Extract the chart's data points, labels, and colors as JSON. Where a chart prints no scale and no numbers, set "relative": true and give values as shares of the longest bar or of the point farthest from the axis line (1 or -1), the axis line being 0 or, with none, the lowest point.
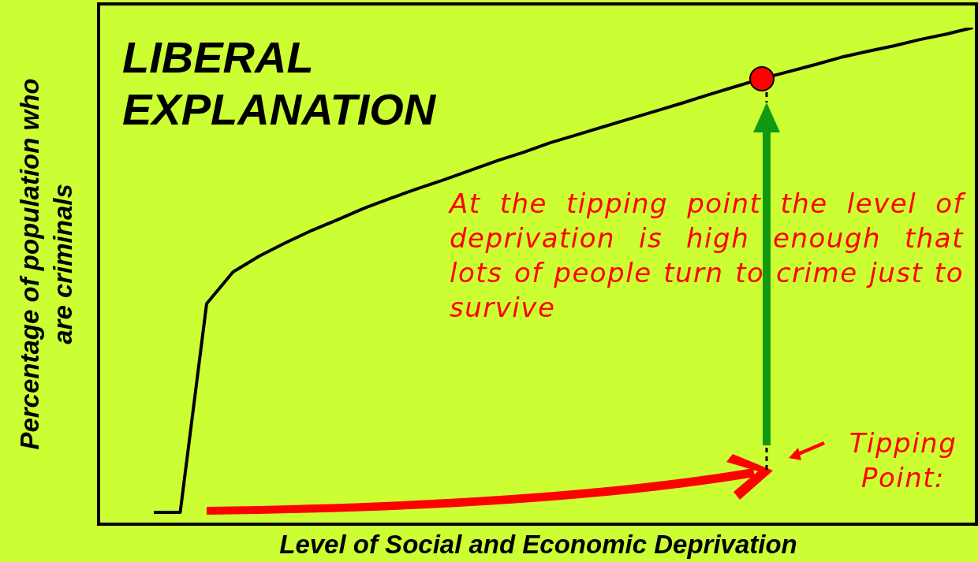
{
  "chart_data": {
    "type": "line",
    "title": "LIBERAL EXPLANATION",
    "xlabel": "Level of Social and Economic Deprivation",
    "ylabel": "Percentage of population who are criminals",
    "relative": true,
    "legend": false,
    "annotations": [
      "At the tipping point the level of deprivation is high enough that lots of people turn to crime just to survive",
      "Tipping Point:"
    ],
    "categories": [
      null,
      null,
      null,
      null,
      null,
      null,
      null,
      null,
      null,
      null,
      null,
      null,
      null,
      null,
      null,
      null,
      null,
      null,
      null,
      null,
      null,
      null,
      null,
      null,
      null,
      null,
      null,
      null,
      null,
      null,
      null,
      null
    ],
    "series": [
      {
        "color": "#000000",
        "values": [
          0.024,
          0.024,
          0.444,
          0.508,
          0.54,
          0.567,
          0.592,
          0.614,
          0.637,
          0.657,
          0.676,
          0.694,
          0.713,
          0.732,
          0.749,
          0.768,
          0.784,
          0.8,
          0.816,
          0.832,
          0.848,
          0.865,
          0.881,
          0.897,
          0.911,
          0.925,
          0.94,
          0.952,
          0.963,
          0.976,
          0.987,
          1
        ]
      }
    ]
  }
}
